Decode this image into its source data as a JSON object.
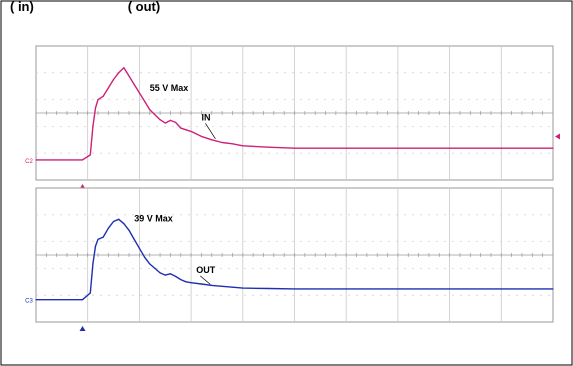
{
  "header_fragment": "( in)                          ( out)",
  "chart_data": [
    {
      "type": "line",
      "channel_label": "C2",
      "series": [
        {
          "label": "IN",
          "color": "#cc2277",
          "x": [
            0,
            0.9,
            1.05,
            1.1,
            1.15,
            1.2,
            1.3,
            1.4,
            1.5,
            1.6,
            1.7,
            1.8,
            1.9,
            2.0,
            2.1,
            2.2,
            2.3,
            2.4,
            2.5,
            2.6,
            2.7,
            2.8,
            2.9,
            3.0,
            3.2,
            3.4,
            3.6,
            3.8,
            4.0,
            4.5,
            5.0,
            6.0,
            7.0,
            8.0,
            9.0,
            10.0
          ],
          "y": [
            -0.9,
            -0.9,
            -0.75,
            0.1,
            0.65,
            0.9,
            1.0,
            1.25,
            1.5,
            1.7,
            1.85,
            1.6,
            1.35,
            1.1,
            0.85,
            0.6,
            0.45,
            0.3,
            0.2,
            0.28,
            0.22,
            0.05,
            0.0,
            -0.05,
            -0.2,
            -0.3,
            -0.38,
            -0.42,
            -0.48,
            -0.52,
            -0.55,
            -0.55,
            -0.55,
            -0.55,
            -0.55,
            -0.55
          ]
        }
      ],
      "annotations": [
        {
          "text": "55 V Max",
          "x": 2.2,
          "y": 1.15
        },
        {
          "text": "IN",
          "x": 3.2,
          "y": 0.28
        }
      ],
      "xlim": [
        0,
        10
      ],
      "ylim": [
        -1.5,
        2.5
      ],
      "grid": true
    },
    {
      "type": "line",
      "channel_label": "C3",
      "series": [
        {
          "label": "OUT",
          "color": "#1f2fb0",
          "x": [
            0,
            0.9,
            1.05,
            1.1,
            1.15,
            1.2,
            1.3,
            1.4,
            1.5,
            1.6,
            1.7,
            1.8,
            1.9,
            2.0,
            2.1,
            2.2,
            2.3,
            2.4,
            2.5,
            2.6,
            2.7,
            2.8,
            2.9,
            3.0,
            3.2,
            3.4,
            3.6,
            3.8,
            4.0,
            4.5,
            5.0,
            6.0,
            7.0,
            8.0,
            9.0,
            10.0
          ],
          "y": [
            -1.0,
            -1.0,
            -0.85,
            -0.2,
            0.2,
            0.35,
            0.4,
            0.6,
            0.75,
            0.8,
            0.7,
            0.55,
            0.35,
            0.15,
            -0.05,
            -0.2,
            -0.3,
            -0.4,
            -0.45,
            -0.42,
            -0.48,
            -0.55,
            -0.6,
            -0.62,
            -0.65,
            -0.68,
            -0.7,
            -0.72,
            -0.74,
            -0.75,
            -0.76,
            -0.76,
            -0.76,
            -0.76,
            -0.76,
            -0.76
          ]
        }
      ],
      "annotations": [
        {
          "text": "39 V Max",
          "x": 1.9,
          "y": 0.75
        },
        {
          "text": "OUT",
          "x": 3.1,
          "y": -0.4
        }
      ],
      "xlim": [
        0,
        10
      ],
      "ylim": [
        -1.5,
        1.5
      ],
      "grid": true
    }
  ]
}
